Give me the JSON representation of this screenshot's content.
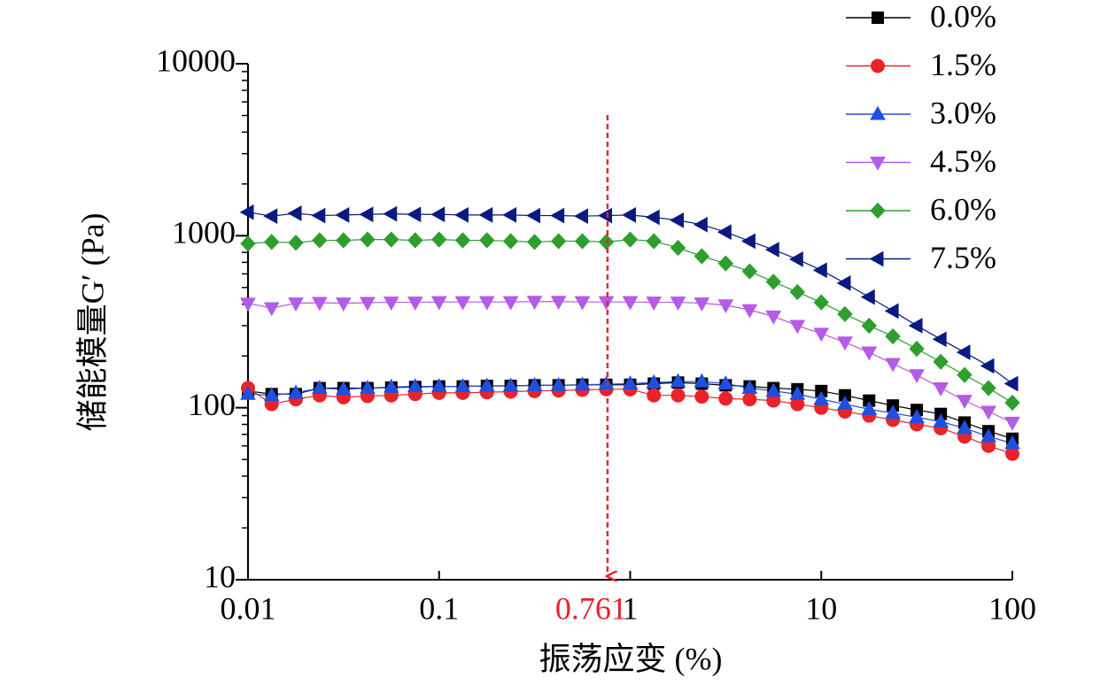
{
  "chart_data": {
    "type": "line",
    "x_scale": "log",
    "y_scale": "log",
    "x_label": "振荡应变 (%)",
    "y_label": "储能模量G′ (Pa)",
    "xlim": [
      0.01,
      100
    ],
    "ylim": [
      10,
      10000
    ],
    "xticks": [
      0.01,
      0.1,
      1,
      10,
      100
    ],
    "yticks": [
      10,
      100,
      1000,
      10000
    ],
    "legend": "top-right",
    "vline": {
      "x": 0.761,
      "color": "#e8232b"
    },
    "x": [
      0.01,
      0.0133,
      0.0178,
      0.0237,
      0.0316,
      0.0422,
      0.0562,
      0.075,
      0.1,
      0.133,
      0.178,
      0.237,
      0.316,
      0.422,
      0.562,
      0.75,
      1,
      1.33,
      1.78,
      2.37,
      3.16,
      4.22,
      5.62,
      7.5,
      10,
      13.3,
      17.8,
      23.7,
      31.6,
      42.2,
      56.2,
      75,
      100
    ],
    "series": [
      {
        "name": "0.0%",
        "color": "#000000",
        "marker": "square",
        "values": [
          125,
          120,
          120,
          130,
          130,
          130,
          131,
          132,
          133,
          133,
          134,
          134,
          135,
          135,
          136,
          136,
          136,
          138,
          140,
          138,
          135,
          133,
          130,
          128,
          125,
          118,
          110,
          103,
          97,
          92,
          82,
          73,
          66
        ]
      },
      {
        "name": "1.5%",
        "color": "#e8232b",
        "marker": "circle",
        "values": [
          130,
          105,
          112,
          118,
          115,
          117,
          118,
          120,
          122,
          122,
          123,
          124,
          125,
          126,
          127,
          128,
          128,
          118,
          118,
          116,
          113,
          112,
          110,
          105,
          100,
          95,
          90,
          85,
          80,
          76,
          68,
          60,
          54
        ]
      },
      {
        "name": "3.0%",
        "color": "#1f4fe0",
        "marker": "triangle-up",
        "values": [
          120,
          118,
          122,
          130,
          128,
          130,
          132,
          133,
          133,
          133,
          134,
          134,
          135,
          135,
          136,
          137,
          138,
          140,
          142,
          142,
          138,
          130,
          125,
          120,
          112,
          105,
          98,
          93,
          88,
          83,
          76,
          68,
          62
        ]
      },
      {
        "name": "4.5%",
        "color": "#b35ce6",
        "marker": "triangle-down",
        "values": [
          404,
          380,
          405,
          408,
          405,
          408,
          410,
          410,
          412,
          412,
          412,
          412,
          414,
          414,
          412,
          412,
          412,
          410,
          410,
          405,
          395,
          370,
          340,
          300,
          270,
          240,
          210,
          180,
          155,
          130,
          110,
          95,
          82
        ]
      },
      {
        "name": "6.0%",
        "color": "#2e9e2e",
        "marker": "diamond",
        "values": [
          900,
          920,
          910,
          940,
          940,
          950,
          950,
          940,
          950,
          940,
          940,
          930,
          920,
          930,
          930,
          920,
          950,
          930,
          850,
          760,
          690,
          620,
          540,
          470,
          410,
          350,
          300,
          260,
          220,
          185,
          155,
          130,
          107
        ]
      },
      {
        "name": "7.5%",
        "color": "#0a1a80",
        "marker": "triangle-left",
        "values": [
          1370,
          1300,
          1350,
          1310,
          1320,
          1330,
          1340,
          1330,
          1330,
          1320,
          1320,
          1320,
          1310,
          1310,
          1300,
          1310,
          1320,
          1280,
          1230,
          1160,
          1050,
          930,
          830,
          730,
          630,
          530,
          440,
          365,
          300,
          250,
          210,
          175,
          138
        ]
      }
    ]
  }
}
